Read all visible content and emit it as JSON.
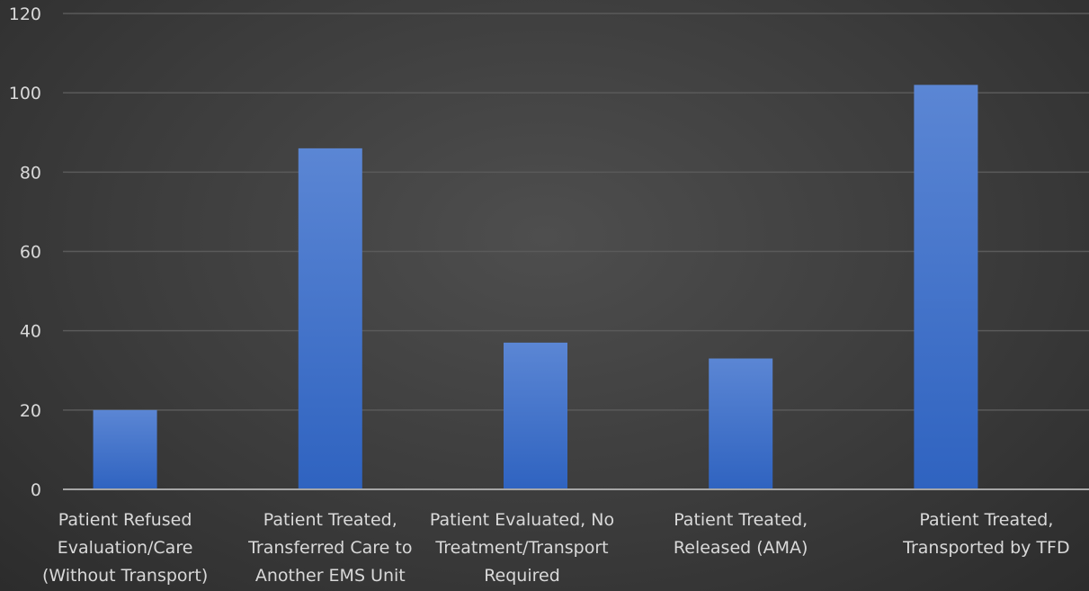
{
  "chart_data": {
    "type": "bar",
    "categories": [
      [
        "Patient Refused",
        "Evaluation/Care",
        "(Without Transport)"
      ],
      [
        "Patient Treated,",
        "Transferred Care to",
        "Another EMS Unit"
      ],
      [
        "Patient Evaluated, No",
        "Treatment/Transport",
        "Required"
      ],
      [
        "Patient Treated,",
        "Released (AMA)"
      ],
      [
        "Patient Treated,",
        "Transported by TFD"
      ]
    ],
    "values": [
      20,
      86,
      37,
      33,
      102
    ],
    "title": "",
    "xlabel": "",
    "ylabel": "",
    "ylim": [
      0,
      120
    ],
    "yticks": [
      0,
      20,
      40,
      60,
      80,
      100,
      120
    ],
    "grid": true,
    "legend": "none",
    "colors": {
      "bar_top": "#5b86d4",
      "bar_bottom": "#2f63c0",
      "grid": "#5a5a5a",
      "axis": "#a6a6a6",
      "text": "#d9d9d9"
    }
  }
}
